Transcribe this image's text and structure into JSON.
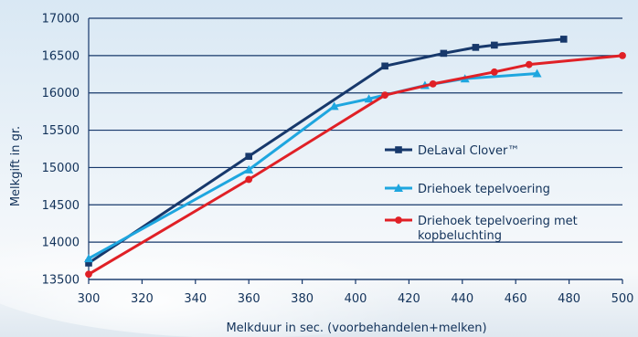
{
  "chart_data": {
    "type": "line",
    "xlabel": "Melkduur in sec. (voorbehandelen+melken)",
    "ylabel": "Melkgift in gr.",
    "xlim": [
      300,
      500
    ],
    "ylim": [
      13500,
      17000
    ],
    "xticks": [
      300,
      320,
      340,
      360,
      380,
      400,
      420,
      440,
      460,
      480,
      500
    ],
    "yticks": [
      13500,
      14000,
      14500,
      15000,
      15500,
      16000,
      16500,
      17000
    ],
    "grid": "horizontal",
    "legend": "right",
    "series": [
      {
        "name": "DeLaval Clover™",
        "label_lines": [
          "DeLaval Clover™"
        ],
        "color": "#17386b",
        "marker": "square",
        "x": [
          300,
          360,
          411,
          433,
          445,
          452,
          478
        ],
        "y": [
          13720,
          15150,
          16360,
          16530,
          16610,
          16640,
          16720
        ]
      },
      {
        "name": "Driehoek tepelvoering",
        "label_lines": [
          "Driehoek tepelvoering"
        ],
        "color": "#1ea6df",
        "marker": "triangle",
        "x": [
          300,
          360,
          392,
          405,
          426,
          441,
          468
        ],
        "y": [
          13780,
          14970,
          15820,
          15920,
          16100,
          16190,
          16260
        ]
      },
      {
        "name": "Driehoek tepelvoering met kopbeluchting",
        "label_lines": [
          "Driehoek tepelvoering met",
          "kopbeluchting"
        ],
        "color": "#e02026",
        "marker": "circle",
        "x": [
          300,
          360,
          411,
          429,
          452,
          465,
          500
        ],
        "y": [
          13570,
          14840,
          15970,
          16120,
          16280,
          16380,
          16500
        ]
      }
    ]
  }
}
